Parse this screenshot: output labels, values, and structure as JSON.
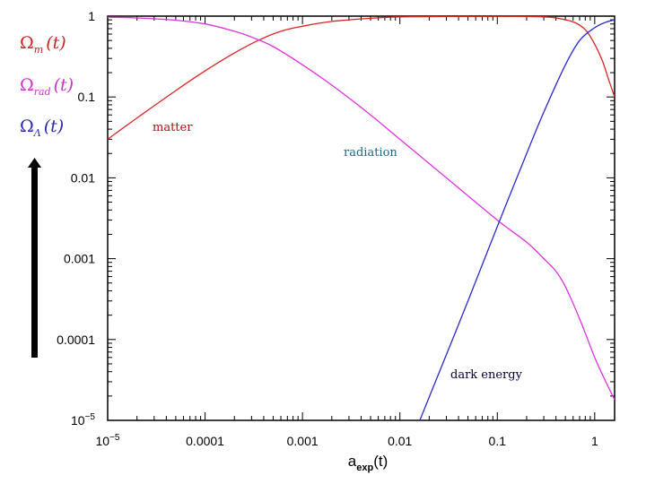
{
  "chart_data": {
    "type": "line",
    "title": "",
    "xlabel": "a_exp(t)",
    "ylabel": "",
    "x_scale": "log",
    "y_scale": "log",
    "xlim": [
      1e-05,
      1.6
    ],
    "ylim": [
      1e-05,
      1
    ],
    "grid": false,
    "x_ticks": [
      {
        "value": 1e-05,
        "base": "10",
        "exp": "−5"
      },
      {
        "value": 0.0001,
        "label": "0.0001"
      },
      {
        "value": 0.001,
        "label": "0.001"
      },
      {
        "value": 0.01,
        "label": "0.01"
      },
      {
        "value": 0.1,
        "label": "0.1"
      },
      {
        "value": 1,
        "label": "1"
      }
    ],
    "y_ticks": [
      {
        "value": 1,
        "label": "1"
      },
      {
        "value": 0.1,
        "label": "0.1"
      },
      {
        "value": 0.01,
        "label": "0.01"
      },
      {
        "value": 0.001,
        "label": "0.001"
      },
      {
        "value": 0.0001,
        "label": "0.0001"
      },
      {
        "value": 1e-05,
        "base": "10",
        "exp": "−5"
      }
    ],
    "xlabel_parts": {
      "main": "a",
      "sub": "exp",
      "tail": "(t)"
    },
    "legend": {
      "placement": "left",
      "entries": [
        {
          "symbol": "Ω",
          "sub": "m",
          "arg": "(t)",
          "color": "#cc2222"
        },
        {
          "symbol": "Ω",
          "sub": "rad",
          "arg": "(t)",
          "color": "#cc33cc"
        },
        {
          "symbol": "Ω",
          "sub": "Λ",
          "arg": "(t)",
          "color": "#2a2aa8"
        }
      ]
    },
    "series": [
      {
        "color": "#dd2222",
        "annotation": "matter",
        "annotation_color": "#aa1111",
        "x": [
          1e-05,
          2e-05,
          5e-05,
          0.0001,
          0.0002,
          0.00035,
          0.0006,
          0.001,
          0.002,
          0.005,
          0.01,
          0.03,
          0.1,
          0.2,
          0.3,
          0.4,
          0.6,
          0.8,
          1.0,
          1.2,
          1.4,
          1.6
        ],
        "y": [
          0.03,
          0.055,
          0.12,
          0.21,
          0.35,
          0.5,
          0.65,
          0.75,
          0.86,
          0.94,
          0.98,
          0.99,
          0.995,
          0.99,
          0.98,
          0.95,
          0.85,
          0.68,
          0.45,
          0.28,
          0.16,
          0.1
        ]
      },
      {
        "color": "#dd33dd",
        "annotation": "radiation",
        "annotation_color": "#1a6a88",
        "x": [
          1e-05,
          2e-05,
          5e-05,
          0.0001,
          0.0002,
          0.0003,
          0.0005,
          0.001,
          0.002,
          0.005,
          0.01,
          0.03,
          0.1,
          0.2,
          0.3,
          0.4,
          0.5,
          0.7,
          1.0,
          1.3,
          1.6
        ],
        "y": [
          0.97,
          0.95,
          0.89,
          0.8,
          0.65,
          0.55,
          0.42,
          0.25,
          0.14,
          0.06,
          0.03,
          0.01,
          0.003,
          0.0016,
          0.001,
          0.0007,
          0.00045,
          0.00018,
          6e-05,
          3e-05,
          1.8e-05
        ]
      },
      {
        "color": "#2a2acc",
        "annotation": "dark energy",
        "annotation_color": "#000033",
        "x": [
          0.016,
          0.03,
          0.05,
          0.1,
          0.2,
          0.3,
          0.5,
          0.7,
          1.0,
          1.3,
          1.6
        ],
        "y": [
          1e-05,
          6.5e-05,
          0.0003,
          0.0025,
          0.02,
          0.065,
          0.25,
          0.5,
          0.72,
          0.84,
          0.9
        ]
      }
    ]
  }
}
